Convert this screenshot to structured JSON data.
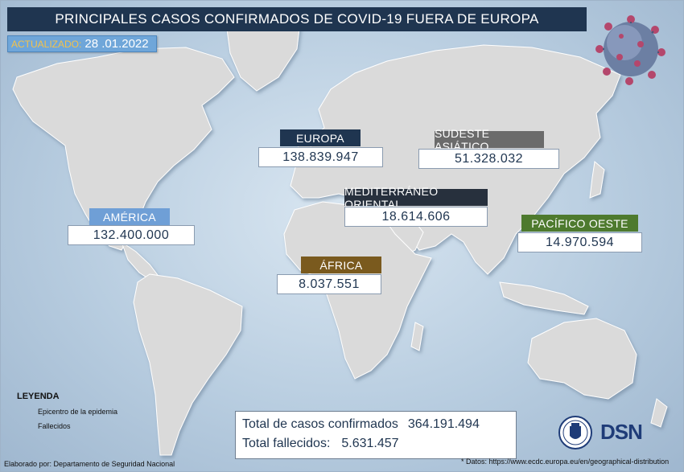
{
  "title": "PRINCIPALES CASOS CONFIRMADOS DE COVID-19 FUERA DE EUROPA",
  "updated": {
    "label": "ACTUALIZADO:",
    "date": "28 .01.2022"
  },
  "regions": [
    {
      "name": "EUROPA",
      "value": "138.839.947",
      "color": "#1f3550"
    },
    {
      "name": "SUDESTE ASIÁTICO",
      "value": "51.328.032",
      "color": "#6b6b6b"
    },
    {
      "name": "MEDITERRÁNEO ORIENTAL",
      "value": "18.614.606",
      "color": "#27303d"
    },
    {
      "name": "AMÉRICA",
      "value": "132.400.000",
      "color": "#6f9fd6"
    },
    {
      "name": "PACÍFICO OESTE",
      "value": "14.970.594",
      "color": "#4e7a2e"
    },
    {
      "name": "ÁFRICA",
      "value": "8.037.551",
      "color": "#7a5a1e"
    }
  ],
  "legend": {
    "heading": "LEYENDA",
    "items": [
      "Epicentro de la epidemia",
      "Fallecidos"
    ]
  },
  "totals": {
    "cases_label": "Total de casos confirmados",
    "cases_value": "364.191.494",
    "deaths_label": "Total fallecidos:",
    "deaths_value": "5.631.457"
  },
  "credit": "Elaborado por: Departamento de Seguridad Nacional",
  "source": "* Datos: https://www.ecdc.europa.eu/en/geographical-distribution",
  "logo_text": "DSN"
}
